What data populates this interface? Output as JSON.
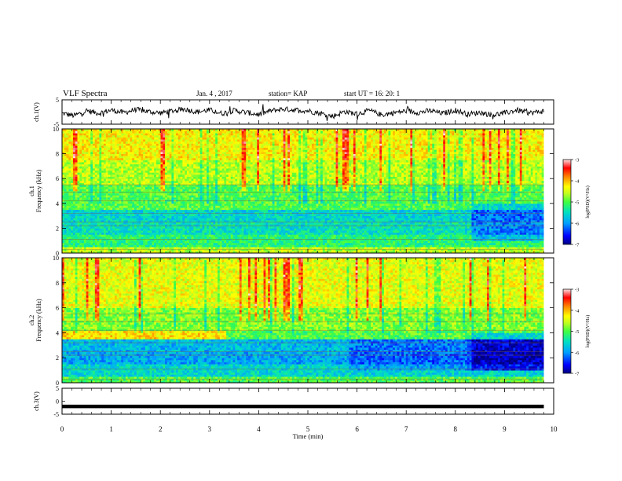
{
  "header": {
    "title": "VLF Spectra",
    "date": "Jan. 4 , 2017",
    "station": "station= KAP",
    "start": "start UT = 16: 20: 1"
  },
  "colors": {
    "colormap": [
      "#000080",
      "#0000ff",
      "#00a0ff",
      "#00e0c0",
      "#40ff40",
      "#c0ff20",
      "#ffff00",
      "#ff8000",
      "#ff0000",
      "#ffc0c0",
      "#ffffff"
    ],
    "trace": "#000000"
  },
  "chart_data": [
    {
      "type": "line",
      "id": "ch1-waveform",
      "ylabel": "ch.1(V)",
      "ylim": [
        -5,
        5
      ],
      "yticks": [
        "5",
        "-5"
      ],
      "xlim": [
        0,
        10
      ],
      "x": [
        0,
        0.25,
        0.5,
        0.75,
        1.0,
        1.25,
        1.5,
        1.75,
        2.0,
        2.25,
        2.5,
        2.75,
        3.0,
        3.25,
        3.5,
        3.75,
        4.0,
        4.25,
        4.5,
        4.75,
        5.0,
        5.25,
        5.5,
        5.75,
        6.0,
        6.25,
        6.5,
        6.75,
        7.0,
        7.25,
        7.5,
        7.75,
        8.0,
        8.25,
        8.5,
        8.75,
        9.0,
        9.25,
        9.5,
        9.75
      ],
      "values": [
        -0.5,
        -1.5,
        0.5,
        -0.5,
        0.8,
        -0.3,
        1.0,
        0.2,
        -0.4,
        0.5,
        1.2,
        0.0,
        0.8,
        -0.6,
        0.6,
        -0.2,
        -1.0,
        0.5,
        1.2,
        0.8,
        0.5,
        -0.5,
        -1.8,
        0.2,
        -0.8,
        0.6,
        -1.2,
        -0.3,
        0.4,
        -0.2,
        0.5,
        -0.6,
        0.8,
        -0.9,
        -0.2,
        -1.2,
        -0.5,
        0.8,
        -0.4,
        0.2
      ]
    },
    {
      "type": "heatmap",
      "id": "ch1-spectrogram",
      "ylabel": "ch.1 Frequency (kHz)",
      "yticks": [
        "0",
        "2",
        "4",
        "6",
        "8",
        "10"
      ],
      "ylim": [
        0,
        10
      ],
      "xlim": [
        0,
        10
      ],
      "colorbar": {
        "label": "log(PSD)(V²/Hz)",
        "ticks": [
          "-3",
          "-4",
          "-5",
          "-6",
          "-7"
        ],
        "range": [
          -7,
          -3
        ]
      },
      "bands": [
        {
          "fmin": 0.0,
          "fmax": 0.5,
          "level": -4.6
        },
        {
          "fmin": 0.5,
          "fmax": 1.5,
          "level": -5.2
        },
        {
          "fmin": 1.5,
          "fmax": 2.5,
          "level": -5.5
        },
        {
          "fmin": 2.5,
          "fmax": 3.5,
          "level": -5.6
        },
        {
          "fmin": 3.5,
          "fmax": 5.5,
          "level": -5.0
        },
        {
          "fmin": 5.5,
          "fmax": 7.5,
          "level": -4.6
        },
        {
          "fmin": 7.5,
          "fmax": 10.0,
          "level": -4.3
        }
      ]
    },
    {
      "type": "heatmap",
      "id": "ch2-spectrogram",
      "ylabel": "ch.2 Frequency (kHz)",
      "yticks": [
        "0",
        "2",
        "4",
        "6",
        "8",
        "10"
      ],
      "ylim": [
        0,
        10
      ],
      "xlim": [
        0,
        10
      ],
      "colorbar": {
        "label": "log(PSD)(V²/Hz)",
        "ticks": [
          "-3",
          "-4",
          "-5",
          "-6",
          "-7"
        ],
        "range": [
          -7,
          -3
        ]
      },
      "bands": [
        {
          "fmin": 0.0,
          "fmax": 0.5,
          "level": -5.0
        },
        {
          "fmin": 0.5,
          "fmax": 1.5,
          "level": -5.6
        },
        {
          "fmin": 1.5,
          "fmax": 2.5,
          "level": -5.9
        },
        {
          "fmin": 2.5,
          "fmax": 3.5,
          "level": -5.8
        },
        {
          "fmin": 3.5,
          "fmax": 4.2,
          "level": -4.2
        },
        {
          "fmin": 4.2,
          "fmax": 6.0,
          "level": -4.8
        },
        {
          "fmin": 6.0,
          "fmax": 10.0,
          "level": -4.4
        }
      ]
    },
    {
      "type": "line",
      "id": "ch3-waveform",
      "ylabel": "ch.3(V)",
      "ylim": [
        -5,
        5
      ],
      "yticks": [
        "5",
        "0",
        "-5"
      ],
      "xlim": [
        0,
        10
      ],
      "x": [
        0,
        9.8
      ],
      "values": [
        -2,
        -2
      ]
    }
  ],
  "xaxis": {
    "label": "Time (min)",
    "ticks": [
      "0",
      "1",
      "2",
      "3",
      "4",
      "5",
      "6",
      "7",
      "8",
      "9",
      "10"
    ]
  }
}
